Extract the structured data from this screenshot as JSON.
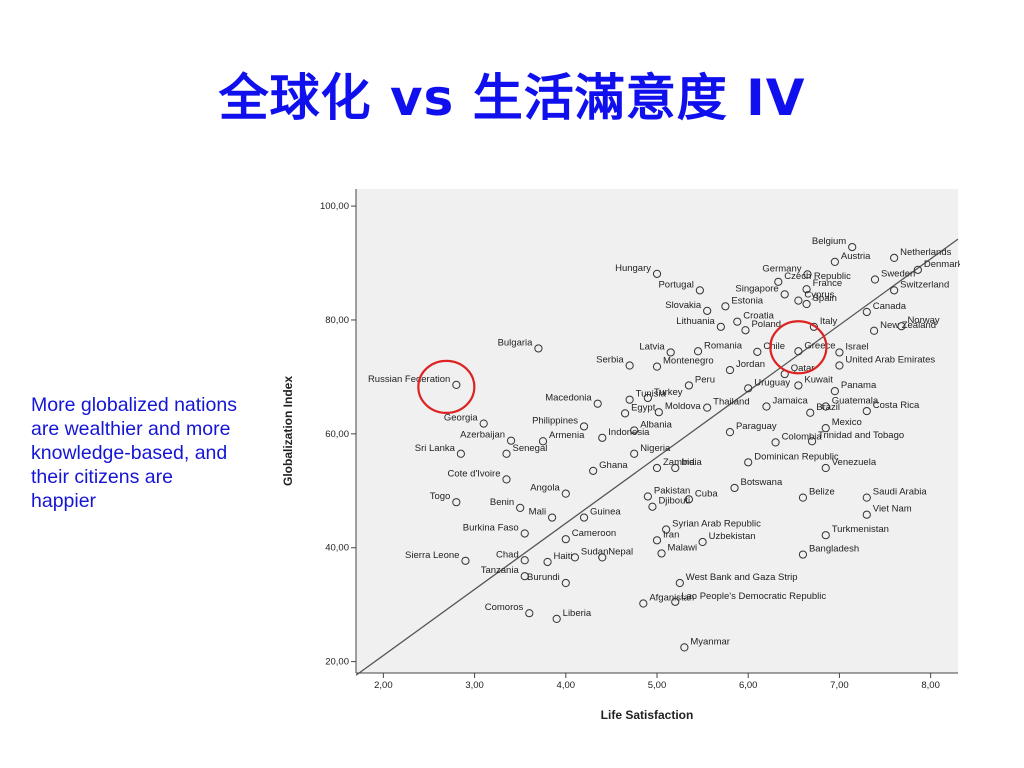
{
  "slide": {
    "title": "全球化 vs 生活滿意度 IV",
    "note": "More globalized nations are wealthier and more knowledge-based, and their citizens are happier"
  },
  "colors": {
    "title": "#1010ee",
    "note": "#1515d6",
    "highlight_circle": "#dd2222",
    "plot_bg": "#f0f0f0",
    "fit_line": "#555555"
  },
  "highlighted_countries": [
    "Russian Federation",
    "Greece"
  ],
  "chart_data": {
    "type": "scatter",
    "title": "",
    "xlabel": "Life Satisfaction",
    "ylabel": "Globalization Index",
    "xlim": [
      1.7,
      8.3
    ],
    "ylim": [
      18,
      103
    ],
    "xticks": [
      "2,00",
      "3,00",
      "4,00",
      "5,00",
      "6,00",
      "7,00",
      "8,00"
    ],
    "yticks": [
      "20,00",
      "40,00",
      "60,00",
      "80,00",
      "100,00"
    ],
    "xtick_values": [
      2,
      3,
      4,
      5,
      6,
      7,
      8
    ],
    "ytick_values": [
      20,
      40,
      60,
      80,
      100
    ],
    "grid": false,
    "fit_line": {
      "x": [
        1.7,
        8.3
      ],
      "y": [
        17.6,
        94.2
      ]
    },
    "points": [
      {
        "label": "Belgium",
        "x": 7.14,
        "y": 92.8
      },
      {
        "label": "Netherlands",
        "x": 7.6,
        "y": 90.9
      },
      {
        "label": "Denmark",
        "x": 7.86,
        "y": 88.8
      },
      {
        "label": "Austria",
        "x": 6.95,
        "y": 90.2
      },
      {
        "label": "Germany",
        "x": 6.65,
        "y": 88.0
      },
      {
        "label": "France",
        "x": 6.64,
        "y": 85.4
      },
      {
        "label": "Sweden",
        "x": 7.39,
        "y": 87.1
      },
      {
        "label": "Switzerland",
        "x": 7.6,
        "y": 85.2
      },
      {
        "label": "Canada",
        "x": 7.3,
        "y": 81.4
      },
      {
        "label": "Norway",
        "x": 7.68,
        "y": 78.9
      },
      {
        "label": "Singapore",
        "x": 6.4,
        "y": 84.5
      },
      {
        "label": "Portugal",
        "x": 5.47,
        "y": 85.2
      },
      {
        "label": "Czech Republic",
        "x": 6.33,
        "y": 86.7
      },
      {
        "label": "Hungary",
        "x": 5.0,
        "y": 88.1
      },
      {
        "label": "Spain",
        "x": 6.64,
        "y": 82.8
      },
      {
        "label": "Cyprus",
        "x": 6.55,
        "y": 83.4
      },
      {
        "label": "Slovakia",
        "x": 5.55,
        "y": 81.6
      },
      {
        "label": "Estonia",
        "x": 5.75,
        "y": 82.4
      },
      {
        "label": "Lithuania",
        "x": 5.7,
        "y": 78.8
      },
      {
        "label": "Croatia",
        "x": 5.88,
        "y": 79.7
      },
      {
        "label": "Bulgaria",
        "x": 3.7,
        "y": 75.0
      },
      {
        "label": "Poland",
        "x": 5.97,
        "y": 78.2
      },
      {
        "label": "Italy",
        "x": 6.72,
        "y": 78.8
      },
      {
        "label": "Greece",
        "x": 6.55,
        "y": 74.5
      },
      {
        "label": "Israel",
        "x": 7.0,
        "y": 74.3
      },
      {
        "label": "New Zealand",
        "x": 7.38,
        "y": 78.1
      },
      {
        "label": "Latvia",
        "x": 5.15,
        "y": 74.3
      },
      {
        "label": "Romania",
        "x": 5.45,
        "y": 74.5
      },
      {
        "label": "Chile",
        "x": 6.1,
        "y": 74.4
      },
      {
        "label": "Serbia",
        "x": 4.7,
        "y": 72.0
      },
      {
        "label": "Montenegro",
        "x": 5.0,
        "y": 71.8
      },
      {
        "label": "Jordan",
        "x": 5.8,
        "y": 71.2
      },
      {
        "label": "United Arab Emirates",
        "x": 7.0,
        "y": 72.0
      },
      {
        "label": "Qatar",
        "x": 6.4,
        "y": 70.5
      },
      {
        "label": "Russian Federation",
        "x": 2.8,
        "y": 68.6
      },
      {
        "label": "Peru",
        "x": 5.35,
        "y": 68.5
      },
      {
        "label": "Kuwait",
        "x": 6.55,
        "y": 68.5
      },
      {
        "label": "Panama",
        "x": 6.95,
        "y": 67.5
      },
      {
        "label": "Uruguay",
        "x": 6.0,
        "y": 68.0
      },
      {
        "label": "Macedonia",
        "x": 4.35,
        "y": 65.3
      },
      {
        "label": "Tunisia",
        "x": 4.7,
        "y": 66.0
      },
      {
        "label": "Turkey",
        "x": 4.9,
        "y": 66.3
      },
      {
        "label": "Thailand",
        "x": 5.55,
        "y": 64.6
      },
      {
        "label": "Jamaica",
        "x": 6.2,
        "y": 64.8
      },
      {
        "label": "Guatemala",
        "x": 6.85,
        "y": 64.8
      },
      {
        "label": "Costa Rica",
        "x": 7.3,
        "y": 64.0
      },
      {
        "label": "Brazil",
        "x": 6.68,
        "y": 63.7
      },
      {
        "label": "Egypt",
        "x": 4.65,
        "y": 63.6
      },
      {
        "label": "Moldova",
        "x": 5.02,
        "y": 63.8
      },
      {
        "label": "Georgia",
        "x": 3.1,
        "y": 61.8
      },
      {
        "label": "Philippines",
        "x": 4.2,
        "y": 61.3
      },
      {
        "label": "Albania",
        "x": 4.75,
        "y": 60.6
      },
      {
        "label": "Paraguay",
        "x": 5.8,
        "y": 60.3
      },
      {
        "label": "Mexico",
        "x": 6.85,
        "y": 61.0
      },
      {
        "label": "Colombia",
        "x": 6.3,
        "y": 58.5
      },
      {
        "label": "Trinidad and Tobago",
        "x": 6.7,
        "y": 58.7
      },
      {
        "label": "Azerbaijan",
        "x": 3.4,
        "y": 58.8
      },
      {
        "label": "Armenia",
        "x": 3.75,
        "y": 58.7
      },
      {
        "label": "Indonesia",
        "x": 4.4,
        "y": 59.3
      },
      {
        "label": "Sri Lanka",
        "x": 2.85,
        "y": 56.5
      },
      {
        "label": "Senegal",
        "x": 3.35,
        "y": 56.5
      },
      {
        "label": "Nigeria",
        "x": 4.75,
        "y": 56.5
      },
      {
        "label": "Venezuela",
        "x": 6.85,
        "y": 54.0
      },
      {
        "label": "Dominican Republic",
        "x": 6.0,
        "y": 55.0
      },
      {
        "label": "Ghana",
        "x": 4.3,
        "y": 53.5
      },
      {
        "label": "Zambia",
        "x": 5.0,
        "y": 54.0
      },
      {
        "label": "India",
        "x": 5.2,
        "y": 54.0
      },
      {
        "label": "Togo",
        "x": 2.8,
        "y": 48.0
      },
      {
        "label": "Cote d'Ivoire",
        "x": 3.35,
        "y": 52.0
      },
      {
        "label": "Angola",
        "x": 4.0,
        "y": 49.5
      },
      {
        "label": "Pakistan",
        "x": 4.9,
        "y": 49.0
      },
      {
        "label": "Botswana",
        "x": 5.85,
        "y": 50.5
      },
      {
        "label": "Belize",
        "x": 6.6,
        "y": 48.8
      },
      {
        "label": "Saudi Arabia",
        "x": 7.3,
        "y": 48.8
      },
      {
        "label": "Cuba",
        "x": 5.35,
        "y": 48.5
      },
      {
        "label": "Djibouti",
        "x": 4.95,
        "y": 47.2
      },
      {
        "label": "Benin",
        "x": 3.5,
        "y": 47.0
      },
      {
        "label": "Mali",
        "x": 3.85,
        "y": 45.3
      },
      {
        "label": "Guinea",
        "x": 4.2,
        "y": 45.3
      },
      {
        "label": "Viet Nam",
        "x": 7.3,
        "y": 45.8
      },
      {
        "label": "Syrian Arab Republic",
        "x": 5.1,
        "y": 43.2
      },
      {
        "label": "Burkina Faso",
        "x": 3.55,
        "y": 42.5
      },
      {
        "label": "Cameroon",
        "x": 4.0,
        "y": 41.5
      },
      {
        "label": "Iran",
        "x": 5.0,
        "y": 41.3
      },
      {
        "label": "Uzbekistan",
        "x": 5.5,
        "y": 41.0
      },
      {
        "label": "Turkmenistan",
        "x": 6.85,
        "y": 42.2
      },
      {
        "label": "Malawi",
        "x": 5.05,
        "y": 39.0
      },
      {
        "label": "Bangladesh",
        "x": 6.6,
        "y": 38.8
      },
      {
        "label": "Sierra Leone",
        "x": 2.9,
        "y": 37.7
      },
      {
        "label": "Chad",
        "x": 3.55,
        "y": 37.8
      },
      {
        "label": "Haiti",
        "x": 3.8,
        "y": 37.5
      },
      {
        "label": "Sudan",
        "x": 4.1,
        "y": 38.3
      },
      {
        "label": "Nepal",
        "x": 4.4,
        "y": 38.3
      },
      {
        "label": "Tanzania",
        "x": 3.55,
        "y": 35.0
      },
      {
        "label": "Burundi",
        "x": 4.0,
        "y": 33.8
      },
      {
        "label": "West Bank and Gaza Strip",
        "x": 5.25,
        "y": 33.8
      },
      {
        "label": "Afganistan",
        "x": 4.85,
        "y": 30.2
      },
      {
        "label": "Lao People's Democratic Republic",
        "x": 5.2,
        "y": 30.5
      },
      {
        "label": "Comoros",
        "x": 3.6,
        "y": 28.5
      },
      {
        "label": "Liberia",
        "x": 3.9,
        "y": 27.5
      },
      {
        "label": "Myanmar",
        "x": 5.3,
        "y": 22.5
      }
    ]
  }
}
